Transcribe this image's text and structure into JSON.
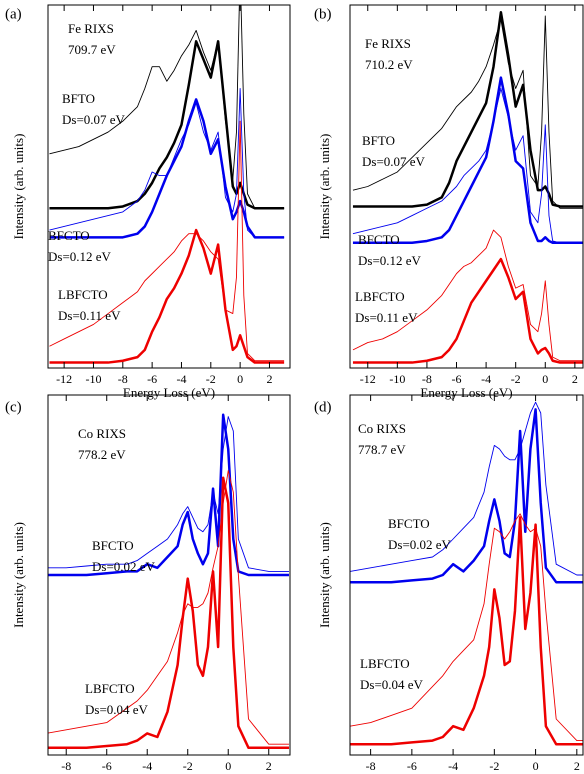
{
  "chart_data": [
    {
      "type": "line",
      "panel_label": "(a)",
      "annotation": [
        "Fe RIXS",
        "709.7 eV"
      ],
      "x_label": "Energy Loss (eV)",
      "y_label": "Intensity (arb. units)",
      "xlim": [
        -13.1,
        3.4
      ],
      "xticks": [
        -12,
        -10,
        -8,
        -6,
        -4,
        -2,
        0,
        2
      ],
      "ylim": [
        0,
        10
      ],
      "x": [
        -13,
        -12,
        -11,
        -10,
        -9,
        -8,
        -7,
        -6.5,
        -6,
        -5.5,
        -5,
        -4.5,
        -4,
        -3.5,
        -3,
        -2.5,
        -2,
        -1.5,
        -1,
        -0.5,
        -0.25,
        0,
        0.25,
        0.5,
        1,
        2,
        3
      ],
      "series": [
        {
          "name": "BFTO",
          "note": "Ds=0.07 eV",
          "color": "#000000",
          "curves": [
            {
              "line_width": 0.9,
              "values": [
                5.9,
                6.0,
                6.1,
                6.3,
                6.5,
                6.8,
                7.2,
                7.7,
                8.3,
                8.3,
                7.9,
                8.2,
                8.6,
                8.9,
                9.3,
                8.7,
                8.2,
                9.0,
                6.8,
                5.2,
                6.5,
                11,
                7.0,
                4.8,
                4.4,
                4.4,
                4.4
              ]
            },
            {
              "line_width": 2.5,
              "values": [
                4.4,
                4.4,
                4.4,
                4.4,
                4.4,
                4.45,
                4.6,
                4.8,
                5.1,
                5.5,
                5.8,
                6.2,
                6.7,
                7.8,
                9.0,
                8.5,
                8.0,
                9.0,
                7.0,
                5.0,
                4.8,
                5.1,
                4.8,
                4.5,
                4.4,
                4.4,
                4.4
              ]
            }
          ]
        },
        {
          "name": "BFCTO",
          "note": "Ds=0.12 eV",
          "color": "#0000ee",
          "curves": [
            {
              "line_width": 0.9,
              "values": [
                3.8,
                3.9,
                4.0,
                4.1,
                4.2,
                4.3,
                4.6,
                4.9,
                5.4,
                5.3,
                5.3,
                5.8,
                6.3,
                6.7,
                7.3,
                6.5,
                6.0,
                6.5,
                4.7,
                4.3,
                4.8,
                7.7,
                4.8,
                3.8,
                3.6,
                3.6,
                3.6
              ]
            },
            {
              "line_width": 2.5,
              "values": [
                3.6,
                3.6,
                3.6,
                3.6,
                3.6,
                3.6,
                3.7,
                3.9,
                4.3,
                4.8,
                5.3,
                5.7,
                6.1,
                6.8,
                7.4,
                6.8,
                5.9,
                6.3,
                5.0,
                4.1,
                4.3,
                4.6,
                4.3,
                3.9,
                3.6,
                3.6,
                3.6
              ]
            }
          ]
        },
        {
          "name": "LBFCTO",
          "note": "Ds=0.11 eV",
          "color": "#ee0000",
          "curves": [
            {
              "line_width": 0.9,
              "values": [
                0.6,
                0.8,
                1.0,
                1.2,
                1.5,
                1.8,
                2.1,
                2.4,
                2.6,
                2.8,
                3.0,
                3.2,
                3.5,
                3.7,
                3.7,
                3.5,
                3.2,
                3.0,
                1.6,
                1.5,
                2.5,
                6.8,
                2.0,
                0.4,
                0.2,
                0.2,
                0.2
              ]
            },
            {
              "line_width": 2.5,
              "values": [
                0.15,
                0.15,
                0.15,
                0.15,
                0.15,
                0.2,
                0.3,
                0.5,
                1.0,
                1.4,
                1.9,
                2.2,
                2.6,
                3.1,
                3.8,
                3.3,
                2.6,
                3.4,
                1.6,
                0.5,
                0.6,
                0.9,
                0.6,
                0.3,
                0.15,
                0.15,
                0.15
              ]
            }
          ]
        }
      ]
    },
    {
      "type": "line",
      "panel_label": "(b)",
      "annotation": [
        "Fe RIXS",
        "710.2 eV"
      ],
      "x_label": "Energy Loss (eV)",
      "y_label": "Intensity (arb. units)",
      "xlim": [
        -13.2,
        2.55
      ],
      "xticks": [
        -12,
        -10,
        -8,
        -6,
        -4,
        -2,
        0,
        2
      ],
      "ylim": [
        0,
        10
      ],
      "x": [
        -13,
        -12,
        -11,
        -10,
        -9,
        -8,
        -7,
        -6.5,
        -6,
        -5.5,
        -5,
        -4.5,
        -4,
        -3.5,
        -3,
        -2.5,
        -2,
        -1.5,
        -1,
        -0.5,
        -0.25,
        0,
        0.25,
        0.5,
        1,
        2,
        3
      ],
      "series": [
        {
          "name": "BFTO",
          "note": "Ds=0.07 eV",
          "color": "#000000",
          "curves": [
            {
              "line_width": 0.9,
              "values": [
                4.9,
                5.0,
                5.2,
                5.4,
                5.8,
                6.2,
                6.6,
                6.9,
                7.2,
                7.4,
                7.6,
                7.9,
                8.3,
                8.9,
                9.6,
                8.4,
                7.7,
                8.2,
                5.3,
                5.0,
                6.5,
                9.7,
                6.5,
                4.6,
                4.4,
                4.4,
                4.4
              ]
            },
            {
              "line_width": 2.5,
              "values": [
                4.45,
                4.45,
                4.45,
                4.45,
                4.45,
                4.5,
                4.7,
                5.1,
                5.7,
                6.1,
                6.5,
                6.9,
                7.3,
                8.3,
                9.8,
                8.6,
                7.2,
                7.8,
                6.0,
                4.9,
                4.9,
                5.0,
                4.8,
                4.5,
                4.45,
                4.45,
                4.45
              ]
            }
          ]
        },
        {
          "name": "BFCTO",
          "note": "Ds=0.12 eV",
          "color": "#0000ee",
          "curves": [
            {
              "line_width": 0.9,
              "values": [
                3.7,
                3.8,
                3.9,
                4.0,
                4.2,
                4.4,
                4.6,
                4.8,
                5.0,
                5.3,
                5.5,
                5.7,
                6.0,
                6.8,
                7.7,
                6.9,
                6.0,
                6.4,
                4.3,
                4.0,
                4.8,
                6.7,
                4.2,
                3.5,
                3.45,
                3.45,
                3.45
              ]
            },
            {
              "line_width": 2.5,
              "values": [
                3.45,
                3.45,
                3.45,
                3.45,
                3.45,
                3.5,
                3.6,
                3.8,
                4.2,
                4.6,
                5.0,
                5.4,
                5.8,
                6.8,
                8.0,
                7.0,
                5.7,
                5.5,
                4.0,
                3.5,
                3.5,
                3.6,
                3.5,
                3.45,
                3.45,
                3.45,
                3.45
              ]
            }
          ]
        },
        {
          "name": "LBFCTO",
          "note": "Ds=0.11 eV",
          "color": "#ee0000",
          "curves": [
            {
              "line_width": 0.9,
              "values": [
                0.5,
                0.7,
                0.8,
                1.0,
                1.3,
                1.6,
                2.0,
                2.3,
                2.6,
                2.8,
                2.9,
                3.1,
                3.3,
                3.8,
                3.6,
                2.8,
                2.2,
                2.3,
                1.2,
                1.0,
                1.5,
                2.4,
                1.2,
                0.3,
                0.2,
                0.2,
                0.2
              ]
            },
            {
              "line_width": 2.5,
              "values": [
                0.15,
                0.15,
                0.15,
                0.15,
                0.15,
                0.2,
                0.3,
                0.5,
                0.8,
                1.3,
                1.8,
                2.1,
                2.4,
                2.7,
                3.0,
                2.5,
                1.9,
                2.1,
                0.8,
                0.4,
                0.5,
                0.55,
                0.4,
                0.2,
                0.15,
                0.15,
                0.15
              ]
            }
          ]
        }
      ]
    },
    {
      "type": "line",
      "panel_label": "(c)",
      "annotation": [
        "Co RIXS",
        "778.2 eV"
      ],
      "x_label": "Energy Loss (eV)",
      "y_label": "Intensity (arb. units)",
      "xlim": [
        -8.9,
        3.05
      ],
      "xticks": [
        -8,
        -6,
        -4,
        -2,
        0,
        2
      ],
      "ylim": [
        0,
        10
      ],
      "x": [
        -9,
        -8,
        -7,
        -6,
        -5,
        -4.5,
        -4,
        -3.5,
        -3,
        -2.5,
        -2.25,
        -2,
        -1.75,
        -1.5,
        -1.25,
        -1,
        -0.75,
        -0.5,
        -0.25,
        0,
        0.25,
        0.5,
        1,
        2,
        3
      ],
      "series": [
        {
          "name": "BFCTO",
          "note": "Ds=0.02 eV",
          "color": "#0000ee",
          "curves": [
            {
              "line_width": 0.9,
              "values": [
                5.2,
                5.2,
                5.25,
                5.3,
                5.3,
                5.4,
                5.6,
                5.8,
                6.0,
                6.4,
                6.7,
                6.9,
                6.6,
                6.3,
                6.2,
                6.4,
                7.3,
                6.7,
                8.5,
                9.4,
                9.0,
                6.0,
                5.2,
                5.1,
                5.1
              ]
            },
            {
              "line_width": 2.5,
              "values": [
                5.0,
                5.0,
                5.0,
                5.05,
                5.1,
                5.1,
                5.3,
                5.2,
                5.5,
                5.8,
                6.4,
                6.75,
                6.0,
                5.6,
                5.3,
                5.6,
                7.4,
                5.8,
                9.45,
                8.5,
                6.0,
                5.1,
                5.0,
                5.0,
                5.0
              ]
            }
          ]
        },
        {
          "name": "LBFCTO",
          "note": "Ds=0.04 eV",
          "color": "#ee0000",
          "curves": [
            {
              "line_width": 0.9,
              "values": [
                0.6,
                0.7,
                0.8,
                0.9,
                1.3,
                1.5,
                1.8,
                2.2,
                2.6,
                3.4,
                3.9,
                4.2,
                4.1,
                4.1,
                4.2,
                4.5,
                5.2,
                5.8,
                7.0,
                7.9,
                7.3,
                5.0,
                1.0,
                0.3,
                0.3
              ]
            },
            {
              "line_width": 2.5,
              "values": [
                0.2,
                0.2,
                0.2,
                0.25,
                0.3,
                0.4,
                0.6,
                0.5,
                1.2,
                2.5,
                3.8,
                4.9,
                4.0,
                2.5,
                2.2,
                3.0,
                5.1,
                3.0,
                7.7,
                7.0,
                3.0,
                0.8,
                0.2,
                0.2,
                0.2
              ]
            }
          ]
        }
      ]
    },
    {
      "type": "line",
      "panel_label": "(d)",
      "annotation": [
        "Co RIXS",
        "778.7 eV"
      ],
      "x_label": "Energy Loss (eV)",
      "y_label": "Intensity (arb. units)",
      "xlim": [
        -9,
        2.3
      ],
      "xticks": [
        -8,
        -6,
        -4,
        -2,
        0,
        2
      ],
      "ylim": [
        0,
        10
      ],
      "x": [
        -9,
        -8,
        -7,
        -6,
        -5,
        -4.5,
        -4,
        -3.5,
        -3,
        -2.5,
        -2.25,
        -2,
        -1.75,
        -1.5,
        -1.25,
        -1,
        -0.75,
        -0.5,
        -0.25,
        0,
        0.25,
        0.5,
        1,
        2,
        3
      ],
      "series": [
        {
          "name": "BFCTO",
          "note": "Ds=0.02 eV",
          "color": "#0000ee",
          "curves": [
            {
              "line_width": 0.9,
              "values": [
                5.1,
                5.2,
                5.3,
                5.4,
                5.5,
                5.7,
                6.0,
                6.3,
                6.6,
                7.3,
                8.0,
                8.6,
                8.5,
                8.3,
                8.2,
                8.2,
                8.5,
                9.0,
                9.5,
                9.8,
                9.5,
                7.5,
                5.3,
                5.0,
                5.0
              ]
            },
            {
              "line_width": 2.5,
              "values": [
                4.8,
                4.8,
                4.8,
                4.85,
                4.9,
                5.0,
                5.3,
                5.1,
                5.4,
                5.8,
                6.5,
                7.1,
                6.5,
                5.6,
                5.5,
                6.5,
                9.0,
                6.2,
                8.5,
                9.6,
                7.0,
                5.2,
                4.8,
                4.8,
                4.8
              ]
            }
          ]
        },
        {
          "name": "LBFCTO",
          "note": "Ds=0.04 eV",
          "color": "#ee0000",
          "curves": [
            {
              "line_width": 0.9,
              "values": [
                0.8,
                0.9,
                1.1,
                1.3,
                1.9,
                2.2,
                2.6,
                2.9,
                3.2,
                4.2,
                5.3,
                6.3,
                6.2,
                6.0,
                6.2,
                6.5,
                6.7,
                6.4,
                6.2,
                6.3,
                5.8,
                4.0,
                1.0,
                0.4,
                0.4
              ]
            },
            {
              "line_width": 2.5,
              "values": [
                0.3,
                0.3,
                0.3,
                0.35,
                0.4,
                0.5,
                0.8,
                0.7,
                1.3,
                2.2,
                3.0,
                4.6,
                3.8,
                2.5,
                2.6,
                4.0,
                6.6,
                3.5,
                4.5,
                6.4,
                3.0,
                0.8,
                0.3,
                0.3,
                0.3
              ]
            }
          ]
        }
      ]
    }
  ]
}
